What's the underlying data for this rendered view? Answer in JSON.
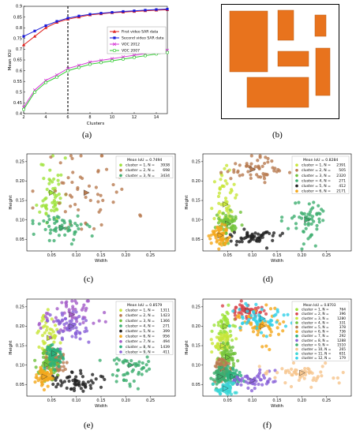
{
  "panel_labels": [
    "(a)",
    "(b)",
    "(c)",
    "(d)",
    "(e)",
    "(f)"
  ],
  "chart_data": [
    {
      "id": "a",
      "type": "line",
      "xlabel": "Clusters",
      "ylabel": "Mean IOU",
      "xlim": [
        2,
        15
      ],
      "ylim": [
        0.4,
        0.9
      ],
      "xticks": [
        2,
        4,
        6,
        8,
        10,
        12,
        14
      ],
      "yticks": [
        0.4,
        0.45,
        0.5,
        0.55,
        0.6,
        0.65,
        0.7,
        0.75,
        0.8,
        0.85,
        0.9
      ],
      "vline_x": 6,
      "legend_position": "top-right",
      "x": [
        2,
        3,
        4,
        5,
        6,
        7,
        8,
        9,
        10,
        11,
        12,
        13,
        14,
        15
      ],
      "series": [
        {
          "name": "First video SAR data",
          "color": "#e0201c",
          "marker": "triangle",
          "values": [
            0.72,
            0.76,
            0.8,
            0.825,
            0.84,
            0.85,
            0.86,
            0.865,
            0.87,
            0.873,
            0.876,
            0.879,
            0.882,
            0.884
          ]
        },
        {
          "name": "Second video SAR data",
          "color": "#1a1ad8",
          "marker": "square",
          "values": [
            0.76,
            0.785,
            0.81,
            0.83,
            0.845,
            0.855,
            0.863,
            0.868,
            0.872,
            0.876,
            0.879,
            0.882,
            0.885,
            0.887
          ]
        },
        {
          "name": "VOC 2012",
          "color": "#d63ad6",
          "marker": "x",
          "values": [
            0.43,
            0.51,
            0.555,
            0.58,
            0.61,
            0.625,
            0.64,
            0.648,
            0.656,
            0.664,
            0.672,
            0.68,
            0.688,
            0.695
          ]
        },
        {
          "name": "VOC 2007",
          "color": "#2ecc2e",
          "marker": "circle",
          "values": [
            0.42,
            0.5,
            0.545,
            0.57,
            0.6,
            0.615,
            0.63,
            0.638,
            0.646,
            0.654,
            0.662,
            0.67,
            0.678,
            0.685
          ]
        }
      ]
    },
    {
      "id": "c",
      "type": "scatter",
      "xlabel": "Width",
      "ylabel": "Height",
      "xlim": [
        0.0,
        0.3
      ],
      "ylim": [
        0.02,
        0.27
      ],
      "xticks": [
        0.05,
        0.1,
        0.15,
        0.2,
        0.25
      ],
      "yticks": [
        0.05,
        0.1,
        0.15,
        0.2,
        0.25
      ],
      "legend_position": "top-right",
      "mean_iou_label": "Mean IoU = 0.7494",
      "clusters": [
        {
          "label": "cluster = 1, N =",
          "n": "3938",
          "color": "#9ee23a",
          "cx": 0.05,
          "cy": 0.17,
          "sx": 0.012,
          "sy": 0.045
        },
        {
          "label": "cluster = 2, N =",
          "n": "698",
          "color": "#b87a50",
          "cx": 0.12,
          "cy": 0.17,
          "sx": 0.05,
          "sy": 0.06
        },
        {
          "label": "cluster = 3, N =",
          "n": "3434",
          "color": "#3dae6f",
          "cx": 0.07,
          "cy": 0.08,
          "sx": 0.025,
          "sy": 0.02
        }
      ]
    },
    {
      "id": "d",
      "type": "scatter",
      "xlabel": "Width",
      "ylabel": "Height",
      "xlim": [
        0.0,
        0.3
      ],
      "ylim": [
        0.02,
        0.27
      ],
      "xticks": [
        0.05,
        0.1,
        0.15,
        0.2,
        0.25
      ],
      "yticks": [
        0.05,
        0.1,
        0.15,
        0.2,
        0.25
      ],
      "legend_position": "top-right",
      "mean_iou_label": "Mean IoU = 0.8284",
      "clusters": [
        {
          "label": "cluster = 1, N =",
          "n": "2391",
          "color": "#c8e63a",
          "cx": 0.045,
          "cy": 0.14,
          "sx": 0.01,
          "sy": 0.04
        },
        {
          "label": "cluster = 2, N =",
          "n": "505",
          "color": "#b87a50",
          "cx": 0.1,
          "cy": 0.23,
          "sx": 0.03,
          "sy": 0.015
        },
        {
          "label": "cluster = 3, N =",
          "n": "2320",
          "color": "#6fc23a",
          "cx": 0.05,
          "cy": 0.09,
          "sx": 0.012,
          "sy": 0.02
        },
        {
          "label": "cluster = 4, N =",
          "n": "271",
          "color": "#3dae6f",
          "cx": 0.21,
          "cy": 0.1,
          "sx": 0.02,
          "sy": 0.03
        },
        {
          "label": "cluster = 5, N =",
          "n": "412",
          "color": "#222222",
          "cx": 0.1,
          "cy": 0.055,
          "sx": 0.025,
          "sy": 0.01
        },
        {
          "label": "cluster = 6, N =",
          "n": "2171",
          "color": "#f4a81c",
          "cx": 0.035,
          "cy": 0.06,
          "sx": 0.008,
          "sy": 0.015
        }
      ]
    },
    {
      "id": "e",
      "type": "scatter",
      "xlabel": "Width",
      "ylabel": "Height",
      "xlim": [
        0.0,
        0.3
      ],
      "ylim": [
        0.02,
        0.27
      ],
      "xticks": [
        0.05,
        0.1,
        0.15,
        0.2,
        0.25
      ],
      "yticks": [
        0.05,
        0.1,
        0.15,
        0.2,
        0.25
      ],
      "legend_position": "top-right",
      "mean_iou_label": "Mean IoU = 0.8579",
      "clusters": [
        {
          "label": "cluster = 1, N =",
          "n": "1311",
          "color": "#c8e63a",
          "cx": 0.045,
          "cy": 0.17,
          "sx": 0.01,
          "sy": 0.03
        },
        {
          "label": "cluster = 2, N =",
          "n": "1423",
          "color": "#b87a50",
          "cx": 0.06,
          "cy": 0.11,
          "sx": 0.012,
          "sy": 0.02
        },
        {
          "label": "cluster = 3, N =",
          "n": "1366",
          "color": "#6fc23a",
          "cx": 0.04,
          "cy": 0.1,
          "sx": 0.01,
          "sy": 0.02
        },
        {
          "label": "cluster = 4, N =",
          "n": "271",
          "color": "#3dae6f",
          "cx": 0.21,
          "cy": 0.1,
          "sx": 0.02,
          "sy": 0.03
        },
        {
          "label": "cluster = 5, N =",
          "n": "399",
          "color": "#222222",
          "cx": 0.1,
          "cy": 0.06,
          "sx": 0.025,
          "sy": 0.012
        },
        {
          "label": "cluster = 6, N =",
          "n": "956",
          "color": "#f4a81c",
          "cx": 0.035,
          "cy": 0.07,
          "sx": 0.008,
          "sy": 0.012
        },
        {
          "label": "cluster = 7, N =",
          "n": "494",
          "color": "#a45cc8",
          "cx": 0.09,
          "cy": 0.23,
          "sx": 0.03,
          "sy": 0.02
        },
        {
          "label": "cluster = 8, N =",
          "n": "1439",
          "color": "#2ab07a",
          "cx": 0.055,
          "cy": 0.13,
          "sx": 0.01,
          "sy": 0.02
        },
        {
          "label": "cluster = 9, N =",
          "n": "411",
          "color": "#8a62d8",
          "cx": 0.09,
          "cy": 0.2,
          "sx": 0.02,
          "sy": 0.02
        }
      ]
    },
    {
      "id": "f",
      "type": "scatter",
      "xlabel": "Width",
      "ylabel": "Height",
      "xlim": [
        0.0,
        0.3
      ],
      "ylim": [
        0.02,
        0.27
      ],
      "xticks": [
        0.05,
        0.1,
        0.15,
        0.2,
        0.25
      ],
      "yticks": [
        0.05,
        0.1,
        0.15,
        0.2,
        0.25
      ],
      "legend_position": "top-right",
      "mean_iou_label": "Mean IoU = 0.8703",
      "clusters": [
        {
          "label": "cluster = 1, N =",
          "n": "764",
          "color": "#9ee23a",
          "cx": 0.045,
          "cy": 0.2,
          "sx": 0.01,
          "sy": 0.025
        },
        {
          "label": "cluster = 2, N =",
          "n": "396",
          "color": "#d8434a",
          "cx": 0.09,
          "cy": 0.24,
          "sx": 0.02,
          "sy": 0.01
        },
        {
          "label": "cluster = 3, N =",
          "n": "1280",
          "color": "#c8e63a",
          "cx": 0.04,
          "cy": 0.15,
          "sx": 0.01,
          "sy": 0.02
        },
        {
          "label": "cluster = 4, N =",
          "n": "331",
          "color": "#6fc23a",
          "cx": 0.05,
          "cy": 0.12,
          "sx": 0.01,
          "sy": 0.015
        },
        {
          "label": "cluster = 5, N =",
          "n": "378",
          "color": "#b87a50",
          "cx": 0.04,
          "cy": 0.09,
          "sx": 0.008,
          "sy": 0.015
        },
        {
          "label": "cluster = 6, N =",
          "n": "736",
          "color": "#f4a81c",
          "cx": 0.12,
          "cy": 0.2,
          "sx": 0.025,
          "sy": 0.02
        },
        {
          "label": "cluster = 7, N =",
          "n": "292",
          "color": "#2ab07a",
          "cx": 0.06,
          "cy": 0.07,
          "sx": 0.012,
          "sy": 0.012
        },
        {
          "label": "cluster = 8, N =",
          "n": "1288",
          "color": "#8a62d8",
          "cx": 0.1,
          "cy": 0.06,
          "sx": 0.025,
          "sy": 0.01
        },
        {
          "label": "cluster = 9, N =",
          "n": "1510",
          "color": "#3dae6f",
          "cx": 0.035,
          "cy": 0.07,
          "sx": 0.008,
          "sy": 0.012
        },
        {
          "label": "cluster = 10, N =",
          "n": "265",
          "color": "#f6c48c",
          "cx": 0.2,
          "cy": 0.08,
          "sx": 0.03,
          "sy": 0.015
        },
        {
          "label": "cluster = 11, N =",
          "n": "651",
          "color": "#3bd6d6",
          "cx": 0.045,
          "cy": 0.04,
          "sx": 0.01,
          "sy": 0.008
        },
        {
          "label": "cluster = 12, N =",
          "n": "179",
          "color": "#2fd0e8",
          "cx": 0.12,
          "cy": 0.22,
          "sx": 0.03,
          "sy": 0.02
        }
      ]
    }
  ],
  "diagram_b": {
    "fill_color": "#e8731d"
  }
}
